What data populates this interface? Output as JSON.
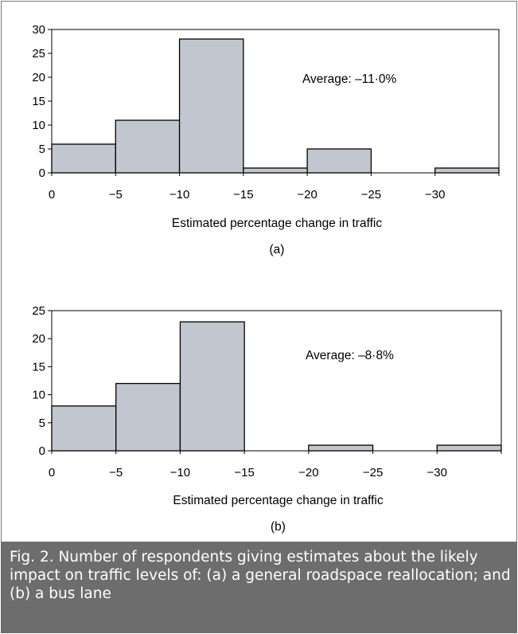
{
  "chart_data": [
    {
      "type": "bar",
      "panel_label": "(a)",
      "bins": [
        [
          0,
          -5
        ],
        [
          -5,
          -10
        ],
        [
          -10,
          -15
        ],
        [
          -15,
          -20
        ],
        [
          -20,
          -25
        ],
        [
          -25,
          -30
        ],
        [
          -30,
          -35
        ]
      ],
      "values": [
        6,
        11,
        28,
        1,
        5,
        0,
        1
      ],
      "x_tick_labels": [
        "0",
        "−5",
        "−10",
        "−15",
        "−20",
        "−25",
        "−30"
      ],
      "y_tick_labels": [
        "0",
        "5",
        "10",
        "15",
        "20",
        "25",
        "30"
      ],
      "ylim": [
        0,
        30
      ],
      "xlabel": "Estimated percentage change in traffic",
      "annotation": "Average: –11·0%",
      "bar_color": "#c2c7cf",
      "grid": false
    },
    {
      "type": "bar",
      "panel_label": "(b)",
      "bins": [
        [
          0,
          -5
        ],
        [
          -5,
          -10
        ],
        [
          -10,
          -15
        ],
        [
          -15,
          -20
        ],
        [
          -20,
          -25
        ],
        [
          -25,
          -30
        ],
        [
          -30,
          -35
        ]
      ],
      "values": [
        8,
        12,
        23,
        0,
        1,
        0,
        1
      ],
      "x_tick_labels": [
        "0",
        "−5",
        "−10",
        "−15",
        "−20",
        "−25",
        "−30"
      ],
      "y_tick_labels": [
        "0",
        "5",
        "10",
        "15",
        "20",
        "25"
      ],
      "ylim": [
        0,
        25
      ],
      "xlabel": "Estimated percentage change in traffic",
      "annotation": "Average: –8·8%",
      "bar_color": "#c2c7cf",
      "grid": false
    }
  ],
  "caption": "Fig. 2. Number of respondents giving estimates about the likely impact on traffic levels of: (a) a general roadspace reallocation; and (b) a bus lane",
  "colors": {
    "caption_bg": "#6d6d6d",
    "caption_text": "#ffffff",
    "bar": "#c2c7cf"
  }
}
